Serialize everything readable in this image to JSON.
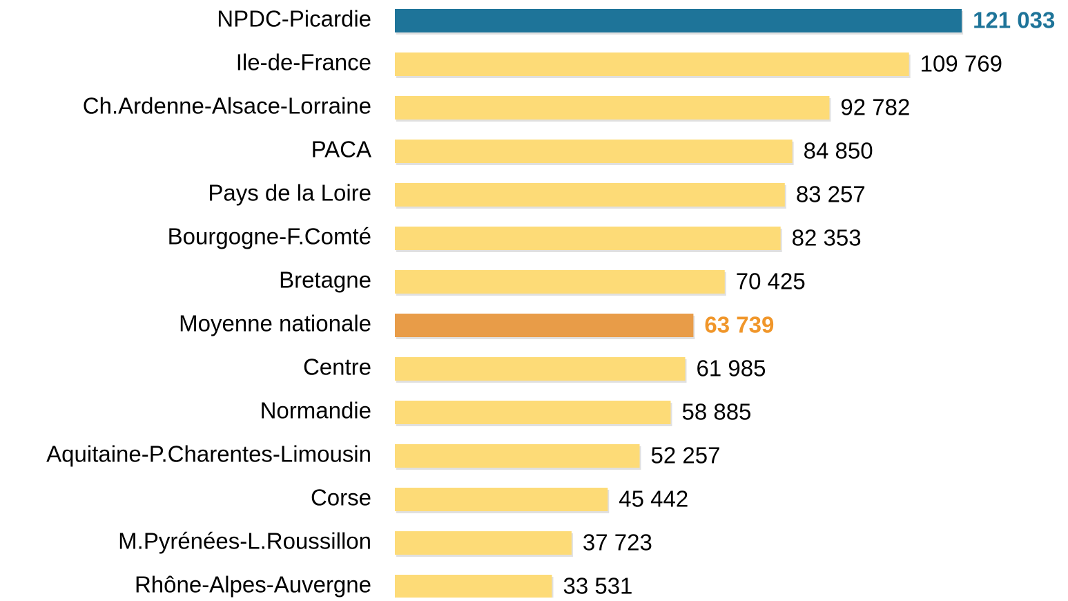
{
  "chart_data": {
    "type": "hbar",
    "categories": [
      "NPDC-Picardie",
      "Ile-de-France",
      "Ch.Ardenne-Alsace-Lorraine",
      "PACA",
      "Pays de la Loire",
      "Bourgogne-F.Comté",
      "Bretagne",
      "Moyenne nationale",
      "Centre",
      "Normandie",
      "Aquitaine-P.Charentes-Limousin",
      "Corse",
      "M.Pyrénées-L.Roussillon",
      "Rhône-Alpes-Auvergne"
    ],
    "values": [
      121033,
      109769,
      92782,
      84850,
      83257,
      82353,
      70425,
      63739,
      61985,
      58885,
      52257,
      45442,
      37723,
      33531
    ],
    "value_labels": [
      "121 033",
      "109 769",
      "92 782",
      "84 850",
      "83 257",
      "82 353",
      "70 425",
      "63 739",
      "61 985",
      "58 885",
      "52 257",
      "45 442",
      "37 723",
      "33 531"
    ],
    "colors": [
      "#1e7499",
      "#fddb77",
      "#fddb77",
      "#fddb77",
      "#fddb77",
      "#fddb77",
      "#fddb77",
      "#e89c48",
      "#fddb77",
      "#fddb77",
      "#fddb77",
      "#fddb77",
      "#fddb77",
      "#fddb77"
    ],
    "label_colors": [
      "#1e7499",
      "#000000",
      "#000000",
      "#000000",
      "#000000",
      "#000000",
      "#000000",
      "#f0962a",
      "#000000",
      "#000000",
      "#000000",
      "#000000",
      "#000000",
      "#000000"
    ],
    "label_weights": [
      "bold",
      "normal",
      "normal",
      "normal",
      "normal",
      "normal",
      "normal",
      "bold",
      "normal",
      "normal",
      "normal",
      "normal",
      "normal",
      "normal"
    ],
    "xlim": [
      0,
      125000
    ]
  }
}
